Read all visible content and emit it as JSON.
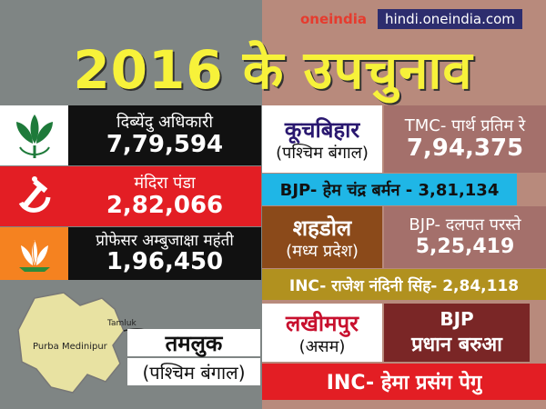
{
  "brand": {
    "logo": "oneindia",
    "url": "hindi.oneindia.com"
  },
  "title": "2016 के उपचुनाव",
  "tamluk": {
    "row1": {
      "name": "दिब्येंदु अधिकारी",
      "votes": "7,79,594"
    },
    "row2": {
      "name": "मंदिरा पंडा",
      "votes": "2,82,066"
    },
    "row3": {
      "name": "प्रोफेसर अम्बुजाक्षा महंती",
      "votes": "1,96,450"
    },
    "map_labels": {
      "town": "Tamluk",
      "district": "Purba Medinipur"
    },
    "place": "तमलुक",
    "state": "(पश्चिम बंगाल)"
  },
  "coochbehar": {
    "place": "कूचबिहार",
    "state": "(पश्चिम बंगाल)",
    "winner": "TMC- पार्थ प्रतिम रे",
    "winner_votes": "7,94,375",
    "runner": "BJP- हेम चंद्र बर्मन - 3,81,134"
  },
  "shahdol": {
    "place": "शहडोल",
    "state": "(मध्य प्रदेश)",
    "winner": "BJP- दलपत परस्ते",
    "winner_votes": "5,25,419",
    "runner": "INC- राजेश नंदिनी सिंह- 2,84,118"
  },
  "lakhimpur": {
    "place": "लखीमपुर",
    "state": "(असम)",
    "winner_line1": "BJP",
    "winner_line2": "प्रधान बरुआ",
    "runner": "INC- हेमा प्रसंग पेगु"
  },
  "colors": {
    "left_bg": "#7f8584",
    "right_bg": "#b88a7c",
    "title": "#f7f23a",
    "red": "#e31e24",
    "maroon": "#7a2626",
    "brown": "#8b4a1a",
    "gold": "#b1911f",
    "cyan": "#1fb6e6"
  }
}
